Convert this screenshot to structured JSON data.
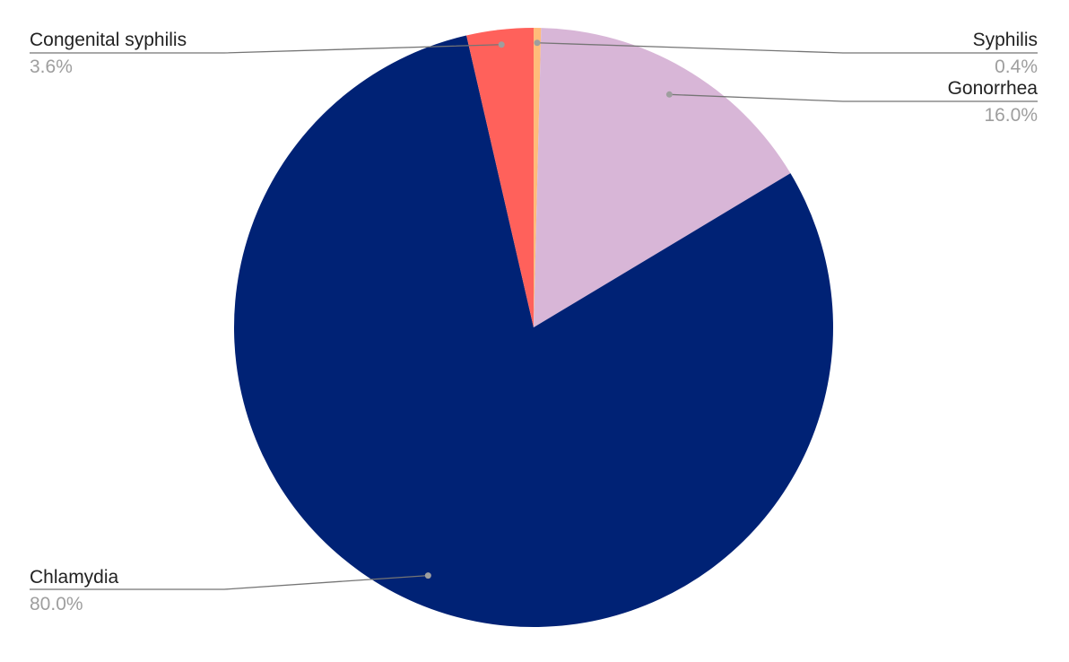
{
  "chart_data": {
    "type": "pie",
    "slices": [
      {
        "label": "Syphilis",
        "value": 0.4,
        "display": "0.4%",
        "color": "#ffbc7a"
      },
      {
        "label": "Gonorrhea",
        "value": 16.0,
        "display": "16.0%",
        "color": "#d8b6d7"
      },
      {
        "label": "Chlamydia",
        "value": 80.0,
        "display": "80.0%",
        "color": "#002275"
      },
      {
        "label": "Congenital syphilis",
        "value": 3.6,
        "display": "3.6%",
        "color": "#ff615b"
      }
    ],
    "start": "top",
    "direction": "clockwise",
    "legend": "none",
    "data_labels": "outside with leader lines"
  },
  "colors": {
    "background": "#ffffff",
    "label_text": "#222222",
    "percent_text": "#9e9e9e",
    "leader_line": "#757575"
  }
}
